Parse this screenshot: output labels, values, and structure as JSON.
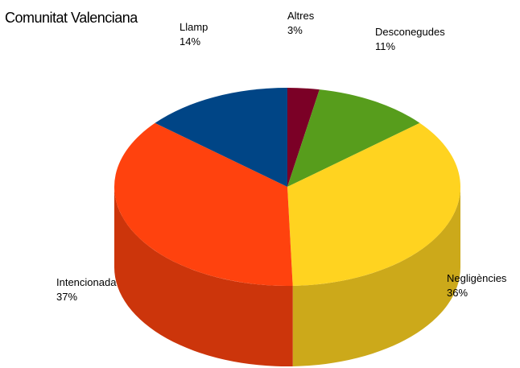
{
  "chart_data": {
    "type": "pie3d",
    "title": "Comunitat Valenciana",
    "categories": [
      "Altres",
      "Desconegudes",
      "Negligències",
      "Intencionada",
      "Llamp"
    ],
    "values": [
      3,
      11,
      36,
      37,
      14
    ],
    "value_labels": [
      "3%",
      "11%",
      "36%",
      "37%",
      "14%"
    ],
    "colors": [
      "#7b0026",
      "#579d1c",
      "#ffd320",
      "#ff420e",
      "#004586"
    ]
  }
}
